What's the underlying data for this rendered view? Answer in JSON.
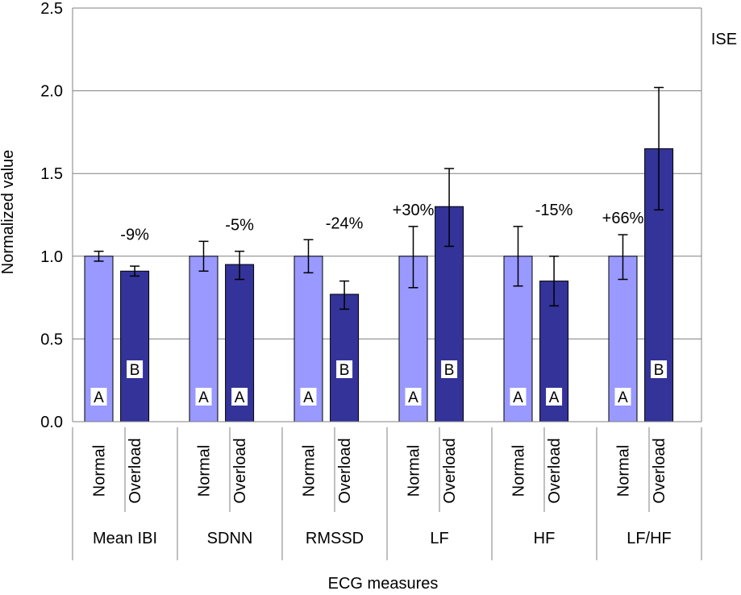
{
  "chart_data": {
    "type": "bar",
    "ylabel": "Normalized value",
    "xlabel": "ECG measures",
    "annotation": "ISE",
    "ylim": [
      0,
      2.5
    ],
    "yticks": [
      "0.0",
      "0.5",
      "1.0",
      "1.5",
      "2.0",
      "2.5"
    ],
    "grid": true,
    "colors": {
      "normal": "#9999ff",
      "overload": "#333399"
    },
    "groups": [
      {
        "name": "Mean IBI",
        "change": "-9%",
        "bars": [
          {
            "condition": "Normal",
            "value": 1.0,
            "err_low": 0.97,
            "err_high": 1.03,
            "letter": "A"
          },
          {
            "condition": "Overload",
            "value": 0.91,
            "err_low": 0.88,
            "err_high": 0.94,
            "letter": "B"
          }
        ]
      },
      {
        "name": "SDNN",
        "change": "-5%",
        "bars": [
          {
            "condition": "Normal",
            "value": 1.0,
            "err_low": 0.91,
            "err_high": 1.09,
            "letter": "A"
          },
          {
            "condition": "Overload",
            "value": 0.95,
            "err_low": 0.86,
            "err_high": 1.03,
            "letter": "A"
          }
        ]
      },
      {
        "name": "RMSSD",
        "change": "-24%",
        "bars": [
          {
            "condition": "Normal",
            "value": 1.0,
            "err_low": 0.9,
            "err_high": 1.1,
            "letter": "A"
          },
          {
            "condition": "Overload",
            "value": 0.77,
            "err_low": 0.68,
            "err_high": 0.85,
            "letter": "B"
          }
        ]
      },
      {
        "name": "LF",
        "change": "+30%",
        "bars": [
          {
            "condition": "Normal",
            "value": 1.0,
            "err_low": 0.81,
            "err_high": 1.18,
            "letter": "A"
          },
          {
            "condition": "Overload",
            "value": 1.3,
            "err_low": 1.06,
            "err_high": 1.53,
            "letter": "B"
          }
        ]
      },
      {
        "name": "HF",
        "change": "-15%",
        "bars": [
          {
            "condition": "Normal",
            "value": 1.0,
            "err_low": 0.82,
            "err_high": 1.18,
            "letter": "A"
          },
          {
            "condition": "Overload",
            "value": 0.85,
            "err_low": 0.7,
            "err_high": 1.0,
            "letter": "A"
          }
        ]
      },
      {
        "name": "LF/HF",
        "change": "+66%",
        "bars": [
          {
            "condition": "Normal",
            "value": 1.0,
            "err_low": 0.86,
            "err_high": 1.13,
            "letter": "A"
          },
          {
            "condition": "Overload",
            "value": 1.65,
            "err_low": 1.28,
            "err_high": 2.02,
            "letter": "B"
          }
        ]
      }
    ]
  }
}
